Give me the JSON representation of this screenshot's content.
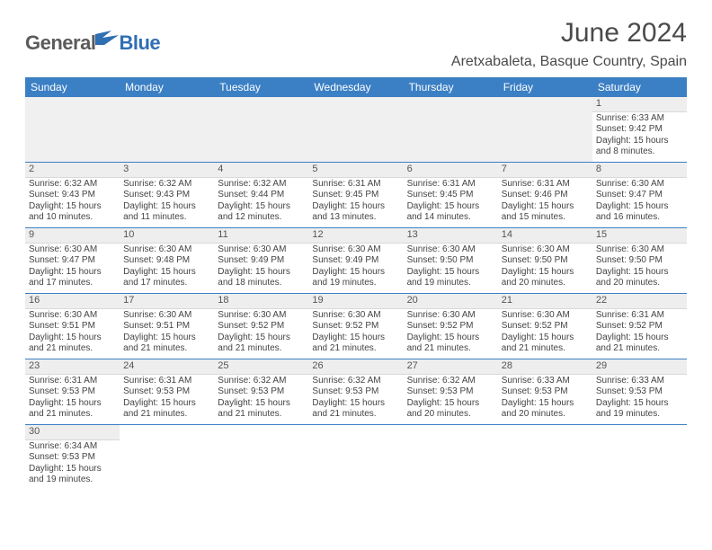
{
  "logo": {
    "word1": "General",
    "word2": "Blue"
  },
  "title": "June 2024",
  "location": "Aretxabaleta, Basque Country, Spain",
  "colors": {
    "header_bg": "#3b7fc4",
    "header_text": "#ffffff",
    "rule": "#3b7fc4",
    "spacer_bg": "#f0f0f0",
    "daynum_bg": "#eeeeee",
    "text": "#444444",
    "title_text": "#4a4a4a",
    "logo_gray": "#5b5b5b",
    "logo_blue": "#2f6fb3"
  },
  "weekdays": [
    "Sunday",
    "Monday",
    "Tuesday",
    "Wednesday",
    "Thursday",
    "Friday",
    "Saturday"
  ],
  "weeks": [
    [
      null,
      null,
      null,
      null,
      null,
      null,
      {
        "n": "1",
        "sr": "6:33 AM",
        "ss": "9:42 PM",
        "dl": "15 hours and 8 minutes."
      }
    ],
    [
      {
        "n": "2",
        "sr": "6:32 AM",
        "ss": "9:43 PM",
        "dl": "15 hours and 10 minutes."
      },
      {
        "n": "3",
        "sr": "6:32 AM",
        "ss": "9:43 PM",
        "dl": "15 hours and 11 minutes."
      },
      {
        "n": "4",
        "sr": "6:32 AM",
        "ss": "9:44 PM",
        "dl": "15 hours and 12 minutes."
      },
      {
        "n": "5",
        "sr": "6:31 AM",
        "ss": "9:45 PM",
        "dl": "15 hours and 13 minutes."
      },
      {
        "n": "6",
        "sr": "6:31 AM",
        "ss": "9:45 PM",
        "dl": "15 hours and 14 minutes."
      },
      {
        "n": "7",
        "sr": "6:31 AM",
        "ss": "9:46 PM",
        "dl": "15 hours and 15 minutes."
      },
      {
        "n": "8",
        "sr": "6:30 AM",
        "ss": "9:47 PM",
        "dl": "15 hours and 16 minutes."
      }
    ],
    [
      {
        "n": "9",
        "sr": "6:30 AM",
        "ss": "9:47 PM",
        "dl": "15 hours and 17 minutes."
      },
      {
        "n": "10",
        "sr": "6:30 AM",
        "ss": "9:48 PM",
        "dl": "15 hours and 17 minutes."
      },
      {
        "n": "11",
        "sr": "6:30 AM",
        "ss": "9:49 PM",
        "dl": "15 hours and 18 minutes."
      },
      {
        "n": "12",
        "sr": "6:30 AM",
        "ss": "9:49 PM",
        "dl": "15 hours and 19 minutes."
      },
      {
        "n": "13",
        "sr": "6:30 AM",
        "ss": "9:50 PM",
        "dl": "15 hours and 19 minutes."
      },
      {
        "n": "14",
        "sr": "6:30 AM",
        "ss": "9:50 PM",
        "dl": "15 hours and 20 minutes."
      },
      {
        "n": "15",
        "sr": "6:30 AM",
        "ss": "9:50 PM",
        "dl": "15 hours and 20 minutes."
      }
    ],
    [
      {
        "n": "16",
        "sr": "6:30 AM",
        "ss": "9:51 PM",
        "dl": "15 hours and 21 minutes."
      },
      {
        "n": "17",
        "sr": "6:30 AM",
        "ss": "9:51 PM",
        "dl": "15 hours and 21 minutes."
      },
      {
        "n": "18",
        "sr": "6:30 AM",
        "ss": "9:52 PM",
        "dl": "15 hours and 21 minutes."
      },
      {
        "n": "19",
        "sr": "6:30 AM",
        "ss": "9:52 PM",
        "dl": "15 hours and 21 minutes."
      },
      {
        "n": "20",
        "sr": "6:30 AM",
        "ss": "9:52 PM",
        "dl": "15 hours and 21 minutes."
      },
      {
        "n": "21",
        "sr": "6:30 AM",
        "ss": "9:52 PM",
        "dl": "15 hours and 21 minutes."
      },
      {
        "n": "22",
        "sr": "6:31 AM",
        "ss": "9:52 PM",
        "dl": "15 hours and 21 minutes."
      }
    ],
    [
      {
        "n": "23",
        "sr": "6:31 AM",
        "ss": "9:53 PM",
        "dl": "15 hours and 21 minutes."
      },
      {
        "n": "24",
        "sr": "6:31 AM",
        "ss": "9:53 PM",
        "dl": "15 hours and 21 minutes."
      },
      {
        "n": "25",
        "sr": "6:32 AM",
        "ss": "9:53 PM",
        "dl": "15 hours and 21 minutes."
      },
      {
        "n": "26",
        "sr": "6:32 AM",
        "ss": "9:53 PM",
        "dl": "15 hours and 21 minutes."
      },
      {
        "n": "27",
        "sr": "6:32 AM",
        "ss": "9:53 PM",
        "dl": "15 hours and 20 minutes."
      },
      {
        "n": "28",
        "sr": "6:33 AM",
        "ss": "9:53 PM",
        "dl": "15 hours and 20 minutes."
      },
      {
        "n": "29",
        "sr": "6:33 AM",
        "ss": "9:53 PM",
        "dl": "15 hours and 19 minutes."
      }
    ],
    [
      {
        "n": "30",
        "sr": "6:34 AM",
        "ss": "9:53 PM",
        "dl": "15 hours and 19 minutes."
      },
      null,
      null,
      null,
      null,
      null,
      null
    ]
  ],
  "labels": {
    "sunrise": "Sunrise:",
    "sunset": "Sunset:",
    "daylight": "Daylight:"
  }
}
